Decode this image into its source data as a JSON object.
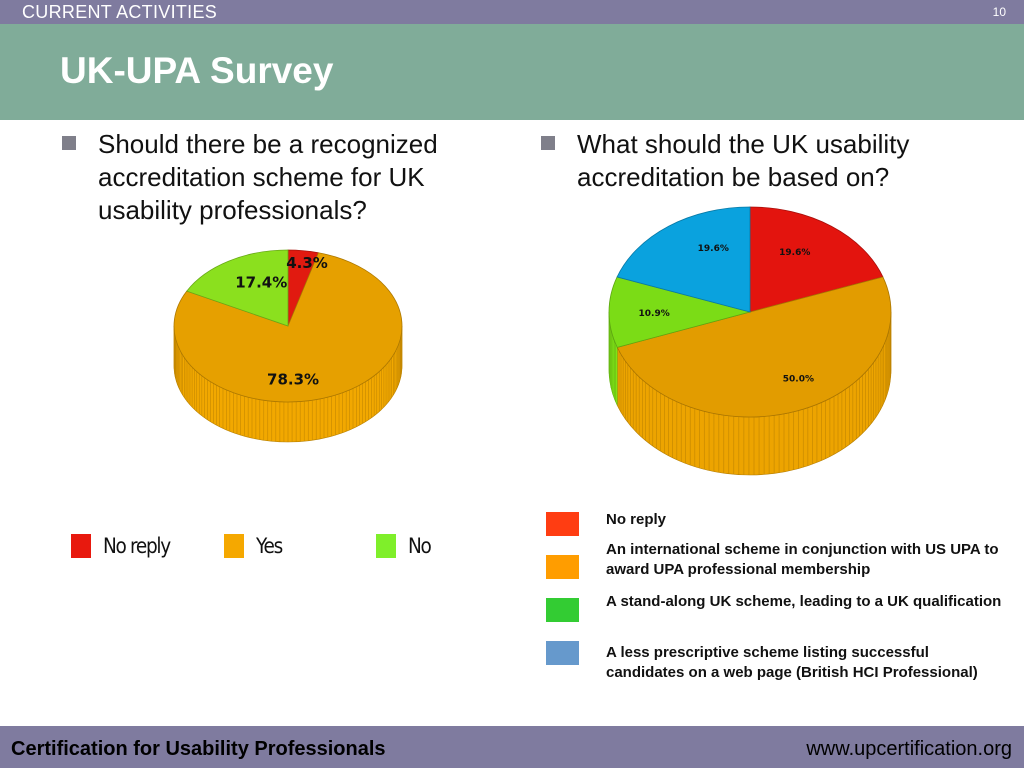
{
  "header": {
    "section": "CURRENT ACTIVITIES",
    "page_number": "10"
  },
  "title": "UK-UPA Survey",
  "question_left": "Should there be a recognized accreditation scheme for UK usability professionals?",
  "question_right": "What should the UK usability accreditation be based on?",
  "chart_data": [
    {
      "type": "pie",
      "title": "",
      "categories": [
        "No reply",
        "Yes",
        "No"
      ],
      "values": [
        4.3,
        78.3,
        17.4
      ],
      "data_labels": [
        "4.3%",
        "78.3%",
        "17.4%"
      ],
      "colors": [
        "#e11a10",
        "#e6a000",
        "#8be01e"
      ],
      "legend_colors": [
        "#e8190e",
        "#f5a800",
        "#7fef2a"
      ],
      "legend_placement": "bottom"
    },
    {
      "type": "pie",
      "title": "",
      "categories": [
        "No reply",
        "An international scheme in conjunction with US UPA to award UPA professional membership",
        "A stand-along UK scheme, leading to a UK qualification",
        "A less prescriptive scheme listing successful candidates on a web page (British HCI Professional)"
      ],
      "values": [
        19.6,
        50.0,
        10.9,
        19.6
      ],
      "data_labels": [
        "19.6%",
        "50.0%",
        "10.9%",
        "19.6%"
      ],
      "colors": [
        "#e3140e",
        "#e29c00",
        "#7bdc16",
        "#0aa2de"
      ],
      "legend_colors": [
        "#ff3d12",
        "#ff9d00",
        "#33cc33",
        "#6699cc"
      ],
      "legend_placement": "bottom-right"
    }
  ],
  "footer": {
    "left": "Certification for Usability Professionals",
    "right": "www.upcertification.org"
  }
}
